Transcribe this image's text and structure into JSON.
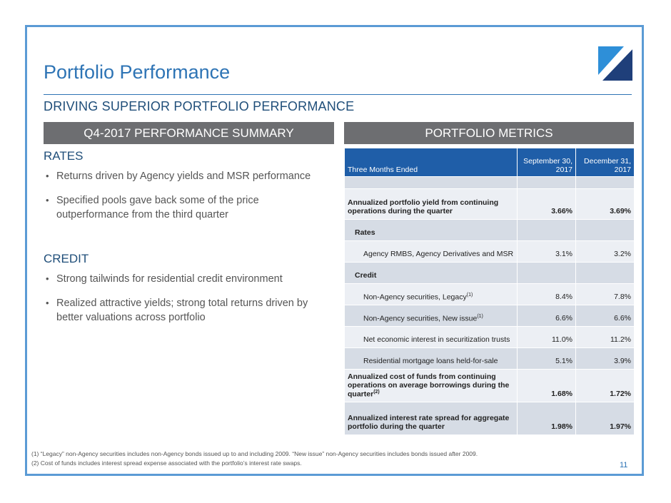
{
  "slide": {
    "title": "Portfolio Performance",
    "subtitle": "DRIVING SUPERIOR PORTFOLIO PERFORMANCE",
    "page_number": "11"
  },
  "left_panel": {
    "header": "Q4-2017 PERFORMANCE SUMMARY",
    "rates": {
      "heading": "RATES",
      "bullets": [
        "Returns driven by Agency yields and MSR performance",
        "Specified pools gave back some of the price outperformance from the third quarter"
      ]
    },
    "credit": {
      "heading": "CREDIT",
      "bullets": [
        "Strong tailwinds for residential credit environment",
        "Realized attractive yields; strong total returns driven by better valuations across portfolio"
      ]
    }
  },
  "right_panel": {
    "header": "PORTFOLIO METRICS",
    "table": {
      "col0": "Three Months Ended",
      "col1": "September 30, 2017",
      "col2": "December 31, 2017",
      "rows": [
        {
          "label": "Annualized portfolio yield from continuing operations during the quarter",
          "v1": "3.66%",
          "v2": "3.69%"
        },
        {
          "label": "Rates"
        },
        {
          "label": "Agency RMBS, Agency Derivatives and MSR",
          "v1": "3.1%",
          "v2": "3.2%"
        },
        {
          "label": "Credit"
        },
        {
          "label": "Non-Agency securities, Legacy",
          "sup": "(1)",
          "v1": "8.4%",
          "v2": "7.8%"
        },
        {
          "label": "Non-Agency securities, New issue",
          "sup": "(1)",
          "v1": "6.6%",
          "v2": "6.6%"
        },
        {
          "label": "Net economic interest in securitization trusts",
          "v1": "11.0%",
          "v2": "11.2%"
        },
        {
          "label": "Residential mortgage loans held-for-sale",
          "v1": "5.1%",
          "v2": "3.9%"
        },
        {
          "label": "Annualized cost of funds from continuing operations on average borrowings during the quarter",
          "sup": "(2)",
          "v1": "1.68%",
          "v2": "1.72%"
        },
        {
          "label": "Annualized interest rate spread for aggregate portfolio during the quarter",
          "v1": "1.98%",
          "v2": "1.97%"
        }
      ]
    }
  },
  "footnotes": [
    "(1)  “Legacy” non-Agency securities includes non-Agency bonds issued up to and including 2009.  “New issue” non-Agency securities includes bonds issued after 2009.",
    "(2)   Cost of funds includes interest spread expense associated with the portfolio’s interest rate swaps."
  ],
  "colors": {
    "frame": "#5b9bd5",
    "title": "#2e74b5",
    "table_header": "#1f5ea8",
    "panel_header": "#6d6e71"
  }
}
